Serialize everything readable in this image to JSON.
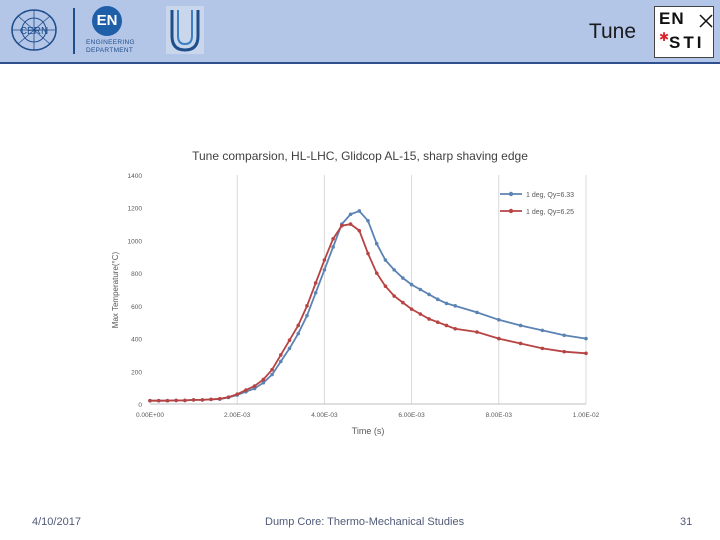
{
  "header": {
    "title": "Tune",
    "logos": {
      "cern": "CERN",
      "en_initials": "EN",
      "en_text": "ENGINEERING\nDEPARTMENT",
      "sti_line1": "EN",
      "sti_line2": "STI"
    }
  },
  "footer": {
    "date": "4/10/2017",
    "center": "Dump Core: Thermo-Mechanical Studies",
    "page": "31"
  },
  "colors": {
    "header_bg": "#b4c6e7",
    "series_blue": "#5b83b3",
    "series_red": "#b84343",
    "grid": "#d9d9d9"
  },
  "chart_data": {
    "type": "line",
    "title": "Tune comparsion, HL-LHC, Glidcop AL-15, sharp shaving edge",
    "xlabel": "Time (s)",
    "ylabel": "Max Temperature(°C)",
    "xlim": [
      0,
      0.01
    ],
    "ylim": [
      0,
      1400
    ],
    "xticks": [
      0,
      0.002,
      0.004,
      0.006,
      0.008,
      0.01
    ],
    "xtick_labels": [
      "0.00E+00",
      "2.00E-03",
      "4.00E-03",
      "6.00E-03",
      "8.00E-03",
      "1.00E-02"
    ],
    "yticks": [
      0,
      200,
      400,
      600,
      800,
      1000,
      1200,
      1400
    ],
    "ytick_labels": [
      "0",
      "200",
      "400",
      "600",
      "800",
      "1000",
      "1200",
      "1400"
    ],
    "grid": "vertical",
    "legend_position": "top-right",
    "series": [
      {
        "name": "1 deg, Qy=6.33",
        "color": "#5b83b3",
        "x": [
          0,
          0.0002,
          0.0004,
          0.0006,
          0.0008,
          0.001,
          0.0012,
          0.0014,
          0.0016,
          0.0018,
          0.002,
          0.0022,
          0.0024,
          0.0026,
          0.0028,
          0.003,
          0.0032,
          0.0034,
          0.0036,
          0.0038,
          0.004,
          0.0042,
          0.0044,
          0.0046,
          0.0048,
          0.005,
          0.0052,
          0.0054,
          0.0056,
          0.0058,
          0.006,
          0.0062,
          0.0064,
          0.0066,
          0.0068,
          0.007,
          0.0075,
          0.008,
          0.0085,
          0.009,
          0.0095,
          0.01
        ],
        "y": [
          20,
          20,
          20,
          22,
          22,
          25,
          25,
          28,
          30,
          40,
          55,
          75,
          95,
          130,
          180,
          260,
          340,
          430,
          540,
          680,
          820,
          960,
          1100,
          1160,
          1180,
          1120,
          980,
          880,
          820,
          770,
          730,
          700,
          670,
          640,
          615,
          600,
          560,
          515,
          480,
          450,
          420,
          400
        ]
      },
      {
        "name": "1 deg, Qy=6.25",
        "color": "#b84343",
        "x": [
          0,
          0.0002,
          0.0004,
          0.0006,
          0.0008,
          0.001,
          0.0012,
          0.0014,
          0.0016,
          0.0018,
          0.002,
          0.0022,
          0.0024,
          0.0026,
          0.0028,
          0.003,
          0.0032,
          0.0034,
          0.0036,
          0.0038,
          0.004,
          0.0042,
          0.0044,
          0.0046,
          0.0048,
          0.005,
          0.0052,
          0.0054,
          0.0056,
          0.0058,
          0.006,
          0.0062,
          0.0064,
          0.0066,
          0.0068,
          0.007,
          0.0075,
          0.008,
          0.0085,
          0.009,
          0.0095,
          0.01
        ],
        "y": [
          20,
          20,
          20,
          22,
          22,
          25,
          25,
          28,
          32,
          42,
          60,
          85,
          110,
          150,
          210,
          300,
          390,
          480,
          600,
          740,
          880,
          1010,
          1090,
          1100,
          1060,
          920,
          800,
          720,
          660,
          620,
          580,
          550,
          520,
          500,
          480,
          460,
          440,
          400,
          370,
          340,
          320,
          310
        ]
      }
    ]
  }
}
